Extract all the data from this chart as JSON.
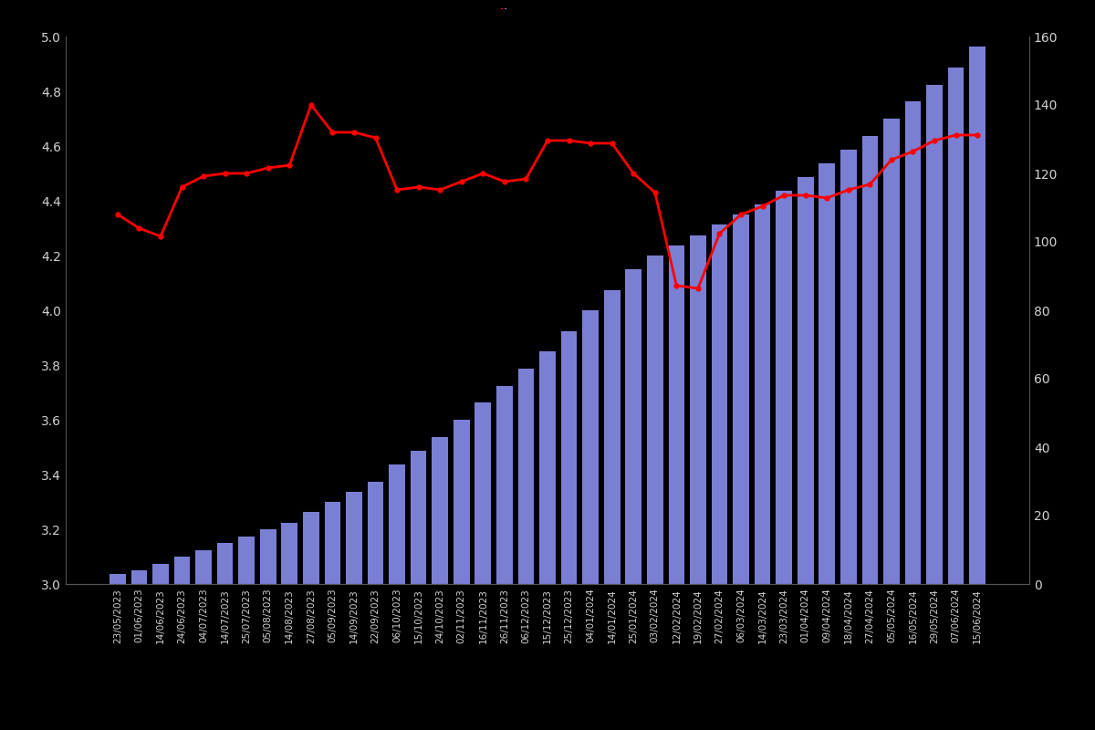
{
  "dates": [
    "23/05/2023",
    "01/06/2023",
    "14/06/2023",
    "24/06/2023",
    "04/07/2023",
    "14/07/2023",
    "25/07/2023",
    "05/08/2023",
    "14/08/2023",
    "27/08/2023",
    "05/09/2023",
    "14/09/2023",
    "22/09/2023",
    "06/10/2023",
    "15/10/2023",
    "24/10/2023",
    "02/11/2023",
    "16/11/2023",
    "26/11/2023",
    "06/12/2023",
    "15/12/2023",
    "25/12/2023",
    "04/01/2024",
    "14/01/2024",
    "25/01/2024",
    "03/02/2024",
    "12/02/2024",
    "19/02/2024",
    "27/02/2024",
    "06/03/2024",
    "14/03/2024",
    "23/03/2024",
    "01/04/2024",
    "09/04/2024",
    "18/04/2024",
    "27/04/2024",
    "05/05/2024",
    "16/05/2024",
    "29/05/2024",
    "07/06/2024",
    "15/06/2024"
  ],
  "bar_values": [
    3,
    4,
    6,
    8,
    10,
    12,
    14,
    16,
    18,
    21,
    24,
    27,
    30,
    35,
    39,
    43,
    48,
    53,
    58,
    63,
    68,
    74,
    80,
    86,
    92,
    96,
    99,
    102,
    105,
    108,
    111,
    115,
    119,
    123,
    127,
    131,
    136,
    141,
    146,
    151,
    157
  ],
  "line_values": [
    4.35,
    4.3,
    4.27,
    4.45,
    4.49,
    4.5,
    4.5,
    4.52,
    4.53,
    4.75,
    4.65,
    4.65,
    4.63,
    4.44,
    4.45,
    4.44,
    4.47,
    4.5,
    4.47,
    4.48,
    4.62,
    4.62,
    4.61,
    4.61,
    4.5,
    4.43,
    4.09,
    4.08,
    4.28,
    4.35,
    4.38,
    4.42,
    4.42,
    4.41,
    4.44,
    4.46,
    4.55,
    4.58,
    4.62,
    4.64,
    4.64
  ],
  "bar_color": "#7b7fd4",
  "line_color": "#ff0000",
  "background_color": "#000000",
  "text_color": "#d3d3d3",
  "left_ylim": [
    3.0,
    5.0
  ],
  "right_ylim": [
    0,
    160
  ],
  "left_yticks": [
    3.0,
    3.2,
    3.4,
    3.6,
    3.8,
    4.0,
    4.2,
    4.4,
    4.6,
    4.8,
    5.0
  ],
  "right_yticks": [
    0,
    20,
    40,
    60,
    80,
    100,
    120,
    140,
    160
  ],
  "figsize": [
    12.0,
    8.0
  ],
  "dpi": 100
}
